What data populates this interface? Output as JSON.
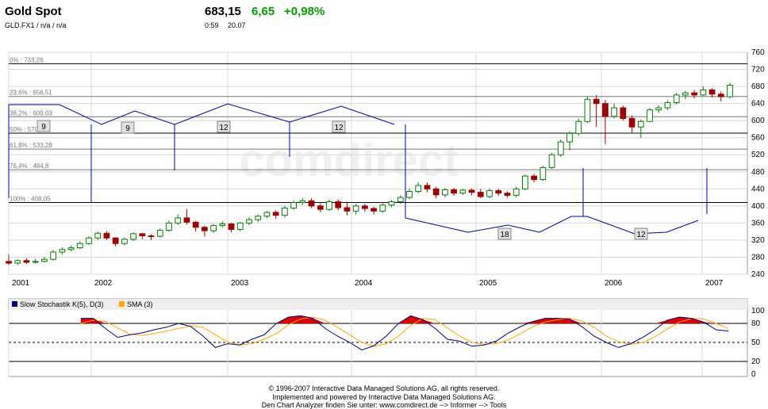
{
  "header": {
    "title": "Gold Spot",
    "symbol": "GLD.FX1  /  n/a  /  n/a",
    "price": "683,15",
    "change": "6,65",
    "change_pct": "+0,98%",
    "time": "0:59",
    "date": "20.07"
  },
  "colors": {
    "up": "#ffffff",
    "up_border": "#008000",
    "down": "#a00000",
    "fib": "#0000aa",
    "stoch_k": "#000080",
    "sma": "#ffaa00",
    "fill": "#e00000"
  },
  "watermark": "comdirect",
  "footer": {
    "line1": "© 1996-2007 Interactive Data Managed Solutions AG, all rights reserved.",
    "line2": "Implemented and powered by  Interactive Data Managed Solutions AG.",
    "line3": "Den Chart Analyzer finden Sie unter: www.comdirect.de --> Informer --> Tools"
  },
  "chart_data": [
    {
      "type": "candlestick",
      "x_labels": [
        "2001",
        "2002",
        "2003",
        "2004",
        "2005",
        "2006",
        "2007"
      ],
      "ylim": [
        240,
        760
      ],
      "y_ticks": [
        760,
        720,
        680,
        640,
        600,
        560,
        520,
        480,
        440,
        400,
        360,
        320,
        280,
        240
      ],
      "fib_levels": [
        {
          "label": "0% : 733,26",
          "value": 733.26
        },
        {
          "label": "23,6% : 656,51",
          "value": 656.51
        },
        {
          "label": "38,2% : 609,03",
          "value": 609.03
        },
        {
          "label": "50% : 570,655",
          "value": 570.655
        },
        {
          "label": "61,8% : 533,28",
          "value": 533.28
        },
        {
          "label": "76,4% : 484,8",
          "value": 484.8
        },
        {
          "label": "100% : 408,05",
          "value": 408.05
        }
      ],
      "cycle_labels": [
        "9",
        "9",
        "12",
        "12",
        "18",
        "12"
      ],
      "candles": [
        [
          270,
          266,
          286,
          262
        ],
        [
          266,
          272,
          275,
          262
        ],
        [
          272,
          268,
          277,
          264
        ],
        [
          268,
          270,
          276,
          265
        ],
        [
          270,
          275,
          281,
          268
        ],
        [
          275,
          292,
          297,
          272
        ],
        [
          292,
          298,
          303,
          286
        ],
        [
          298,
          302,
          307,
          294
        ],
        [
          302,
          312,
          317,
          299
        ],
        [
          312,
          325,
          329,
          309
        ],
        [
          325,
          336,
          340,
          320
        ],
        [
          336,
          325,
          341,
          320
        ],
        [
          325,
          312,
          327,
          305
        ],
        [
          312,
          322,
          326,
          308
        ],
        [
          322,
          335,
          338,
          318
        ],
        [
          335,
          330,
          337,
          322
        ],
        [
          330,
          329,
          334,
          320
        ],
        [
          329,
          343,
          347,
          326
        ],
        [
          343,
          360,
          366,
          340
        ],
        [
          360,
          372,
          380,
          355
        ],
        [
          372,
          362,
          393,
          356
        ],
        [
          362,
          350,
          365,
          340
        ],
        [
          350,
          342,
          354,
          328
        ],
        [
          342,
          354,
          358,
          337
        ],
        [
          354,
          358,
          364,
          350
        ],
        [
          358,
          345,
          360,
          338
        ],
        [
          345,
          360,
          363,
          341
        ],
        [
          360,
          368,
          373,
          355
        ],
        [
          368,
          376,
          380,
          362
        ],
        [
          376,
          385,
          388,
          372
        ],
        [
          385,
          378,
          390,
          370
        ],
        [
          378,
          395,
          400,
          373
        ],
        [
          395,
          408,
          413,
          391
        ],
        [
          408,
          412,
          418,
          402
        ],
        [
          412,
          400,
          418,
          395
        ],
        [
          400,
          392,
          406,
          385
        ],
        [
          392,
          410,
          415,
          388
        ],
        [
          410,
          396,
          415,
          390
        ],
        [
          396,
          388,
          410,
          378
        ],
        [
          388,
          400,
          405,
          380
        ],
        [
          400,
          394,
          405,
          386
        ],
        [
          394,
          388,
          398,
          380
        ],
        [
          388,
          402,
          406,
          384
        ],
        [
          402,
          410,
          414,
          397
        ],
        [
          410,
          420,
          425,
          405
        ],
        [
          420,
          434,
          440,
          416
        ],
        [
          434,
          448,
          455,
          430
        ],
        [
          448,
          440,
          455,
          432
        ],
        [
          440,
          426,
          445,
          418
        ],
        [
          426,
          438,
          442,
          420
        ],
        [
          438,
          430,
          442,
          424
        ],
        [
          430,
          437,
          440,
          426
        ],
        [
          437,
          432,
          441,
          425
        ],
        [
          432,
          422,
          440,
          418
        ],
        [
          422,
          436,
          441,
          418
        ],
        [
          436,
          430,
          440,
          424
        ],
        [
          430,
          425,
          434,
          420
        ],
        [
          425,
          440,
          445,
          420
        ],
        [
          440,
          470,
          474,
          437
        ],
        [
          470,
          462,
          475,
          455
        ],
        [
          462,
          490,
          494,
          459
        ],
        [
          490,
          520,
          524,
          487
        ],
        [
          520,
          550,
          556,
          515
        ],
        [
          550,
          570,
          575,
          530
        ],
        [
          570,
          598,
          604,
          564
        ],
        [
          598,
          650,
          656,
          594
        ],
        [
          650,
          640,
          660,
          585
        ],
        [
          640,
          610,
          648,
          545
        ],
        [
          610,
          630,
          640,
          605
        ],
        [
          630,
          605,
          635,
          600
        ],
        [
          605,
          585,
          612,
          570
        ],
        [
          585,
          598,
          602,
          560
        ],
        [
          598,
          625,
          630,
          596
        ],
        [
          625,
          630,
          636,
          618
        ],
        [
          630,
          642,
          648,
          625
        ],
        [
          642,
          660,
          665,
          638
        ],
        [
          660,
          665,
          670,
          650
        ],
        [
          665,
          660,
          672,
          652
        ],
        [
          660,
          672,
          680,
          658
        ],
        [
          672,
          662,
          676,
          654
        ],
        [
          662,
          656,
          668,
          645
        ],
        [
          656,
          683,
          688,
          652
        ]
      ]
    },
    {
      "type": "line",
      "title": "Slow Stochastik K(5), D(3)",
      "legend": [
        "Slow Stochastik K(5), D(3)",
        "SMA (3)"
      ],
      "ylim": [
        0,
        100
      ],
      "y_ticks": [
        100,
        80,
        50,
        20,
        0
      ],
      "x_labels": [
        "2001",
        "2002",
        "2003",
        "2004",
        "2005",
        "2006",
        "2007"
      ],
      "series": [
        {
          "name": "Slow Stochastik K(5), D(3)",
          "values": [
            88,
            88,
            72,
            58,
            62,
            65,
            70,
            74,
            80,
            75,
            60,
            42,
            48,
            46,
            55,
            62,
            80,
            90,
            92,
            88,
            72,
            60,
            50,
            38,
            45,
            60,
            80,
            92,
            86,
            72,
            55,
            52,
            44,
            46,
            52,
            65,
            75,
            83,
            88,
            88,
            87,
            75,
            60,
            50,
            42,
            48,
            58,
            70,
            85,
            90,
            88,
            82,
            70,
            68
          ]
        },
        {
          "name": "SMA (3)",
          "values": [
            80,
            85,
            83,
            73,
            63,
            61,
            64,
            68,
            72,
            76,
            74,
            62,
            51,
            46,
            48,
            55,
            64,
            78,
            87,
            90,
            85,
            74,
            62,
            50,
            44,
            48,
            60,
            77,
            88,
            86,
            73,
            60,
            50,
            47,
            48,
            54,
            64,
            75,
            82,
            86,
            88,
            84,
            74,
            60,
            51,
            47,
            50,
            59,
            71,
            82,
            88,
            87,
            80,
            72
          ]
        }
      ]
    }
  ]
}
